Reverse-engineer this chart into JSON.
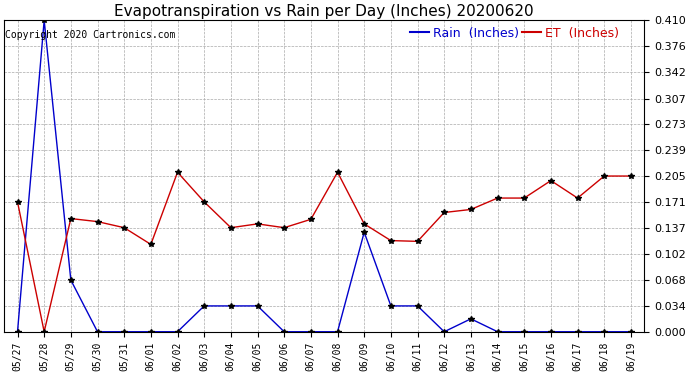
{
  "title": "Evapotranspiration vs Rain per Day (Inches) 20200620",
  "copyright": "Copyright 2020 Cartronics.com",
  "legend_rain": "Rain  (Inches)",
  "legend_et": "ET  (Inches)",
  "legend_rain_color": "#0000cc",
  "legend_et_color": "#cc0000",
  "dates": [
    "05/27",
    "05/28",
    "05/29",
    "05/30",
    "05/31",
    "06/01",
    "06/02",
    "06/03",
    "06/04",
    "06/05",
    "06/06",
    "06/07",
    "06/08",
    "06/09",
    "06/10",
    "06/11",
    "06/12",
    "06/13",
    "06/14",
    "06/15",
    "06/16",
    "06/17",
    "06/18",
    "06/19"
  ],
  "rain": [
    0.0,
    0.41,
    0.068,
    0.0,
    0.0,
    0.0,
    0.0,
    0.034,
    0.034,
    0.034,
    0.0,
    0.0,
    0.0,
    0.131,
    0.034,
    0.034,
    0.0,
    0.017,
    0.0,
    0.0,
    0.0,
    0.0,
    0.0,
    0.0
  ],
  "et": [
    0.171,
    0.0,
    0.149,
    0.145,
    0.137,
    0.115,
    0.21,
    0.171,
    0.137,
    0.142,
    0.137,
    0.148,
    0.21,
    0.142,
    0.12,
    0.119,
    0.157,
    0.161,
    0.176,
    0.176,
    0.199,
    0.176,
    0.205,
    0.205
  ],
  "ylim_min": 0.0,
  "ylim_max": 0.41,
  "ytick_values": [
    0.0,
    0.034,
    0.068,
    0.102,
    0.137,
    0.171,
    0.205,
    0.239,
    0.273,
    0.307,
    0.342,
    0.376,
    0.41
  ],
  "rain_color": "#0000cc",
  "et_color": "#cc0000",
  "bg_color": "#ffffff",
  "grid_color": "#aaaaaa",
  "title_fontsize": 11,
  "copyright_fontsize": 7,
  "legend_fontsize": 9,
  "tick_fontsize": 8,
  "xtick_fontsize": 7
}
